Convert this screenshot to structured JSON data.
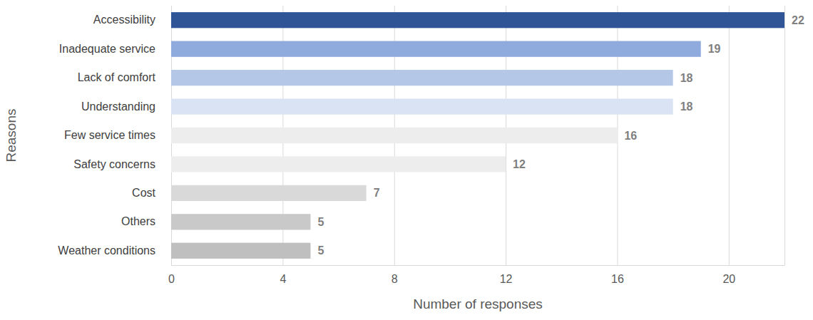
{
  "chart_data": {
    "type": "bar",
    "orientation": "horizontal",
    "x_label": "Number of responses",
    "y_label": "Reasons",
    "categories": [
      "Accessibility",
      "Inadequate service",
      "Lack of comfort",
      "Understanding",
      "Few service times",
      "Safety concerns",
      "Cost",
      "Others",
      "Weather conditions"
    ],
    "values": [
      22,
      19,
      18,
      18,
      16,
      12,
      7,
      5,
      5
    ],
    "colors": [
      "#2f5597",
      "#8faadc",
      "#b4c7e7",
      "#dae3f3",
      "#ededed",
      "#ededed",
      "#d9d9d9",
      "#c9c9c9",
      "#bfbfbf"
    ],
    "xlim": [
      0,
      22
    ],
    "xticks": [
      0,
      4,
      8,
      12,
      16,
      20
    ],
    "grid": true,
    "data_labels": true
  }
}
